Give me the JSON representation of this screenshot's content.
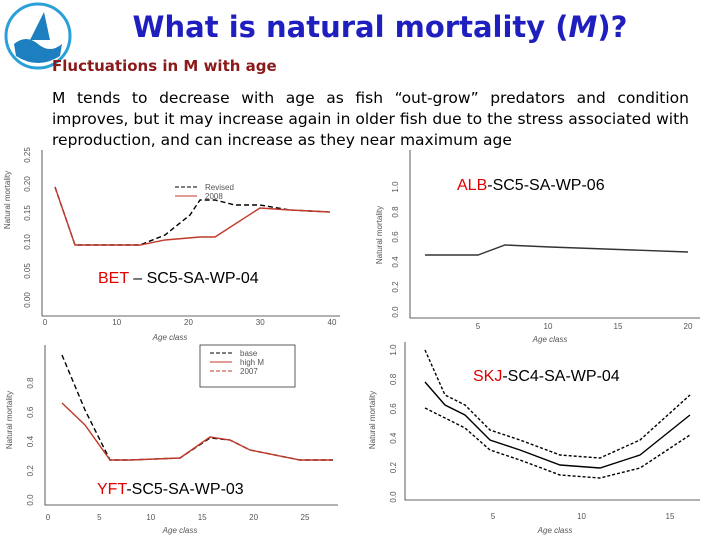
{
  "header": {
    "title_parts": [
      "What is natural mortality (",
      "M",
      ")?"
    ],
    "subtitle": "Fluctuations in M with age",
    "body": "M tends to decrease with age as fish “out-grow” predators and condition improves, but it may increase again in older fish due to the stress associated with reproduction, and can increase as they near maximum age"
  },
  "panels": [
    {
      "code": "BET",
      "source": " – SC5-SA-WP-04",
      "x_label": "Age class",
      "y_label": "Natural mortality",
      "yticks": [
        "0.25",
        "0.20",
        "0.15",
        "0.10",
        "0.05",
        "0.00"
      ],
      "xticks": [
        "0",
        "10",
        "20",
        "30",
        "40"
      ],
      "legend": [
        "Revised",
        "2008"
      ]
    },
    {
      "code": "ALB",
      "source": "-SC5-SA-WP-06",
      "x_label": "Age class",
      "y_label": "Natural mortality",
      "yticks": [
        "1.0",
        "0.8",
        "0.6",
        "0.4",
        "0.2",
        "0.0"
      ],
      "xticks": [
        "5",
        "10",
        "15",
        "20"
      ]
    },
    {
      "code": "YFT",
      "source": "-SC5-SA-WP-03",
      "x_label": "Age class",
      "y_label": "Natural mortality",
      "yticks": [
        "0.8",
        "0.6",
        "0.4",
        "0.2",
        "0.0"
      ],
      "xticks": [
        "0",
        "5",
        "10",
        "15",
        "20",
        "25"
      ],
      "legend": [
        "base",
        "high M",
        "2007"
      ]
    },
    {
      "code": "SKJ",
      "source": "-SC4-SA-WP-04",
      "x_label": "Age class",
      "y_label": "Natural mortality",
      "yticks": [
        "1.0",
        "0.8",
        "0.6",
        "0.4",
        "0.2",
        "0.0"
      ],
      "xticks": [
        "5",
        "10",
        "15"
      ]
    }
  ]
}
